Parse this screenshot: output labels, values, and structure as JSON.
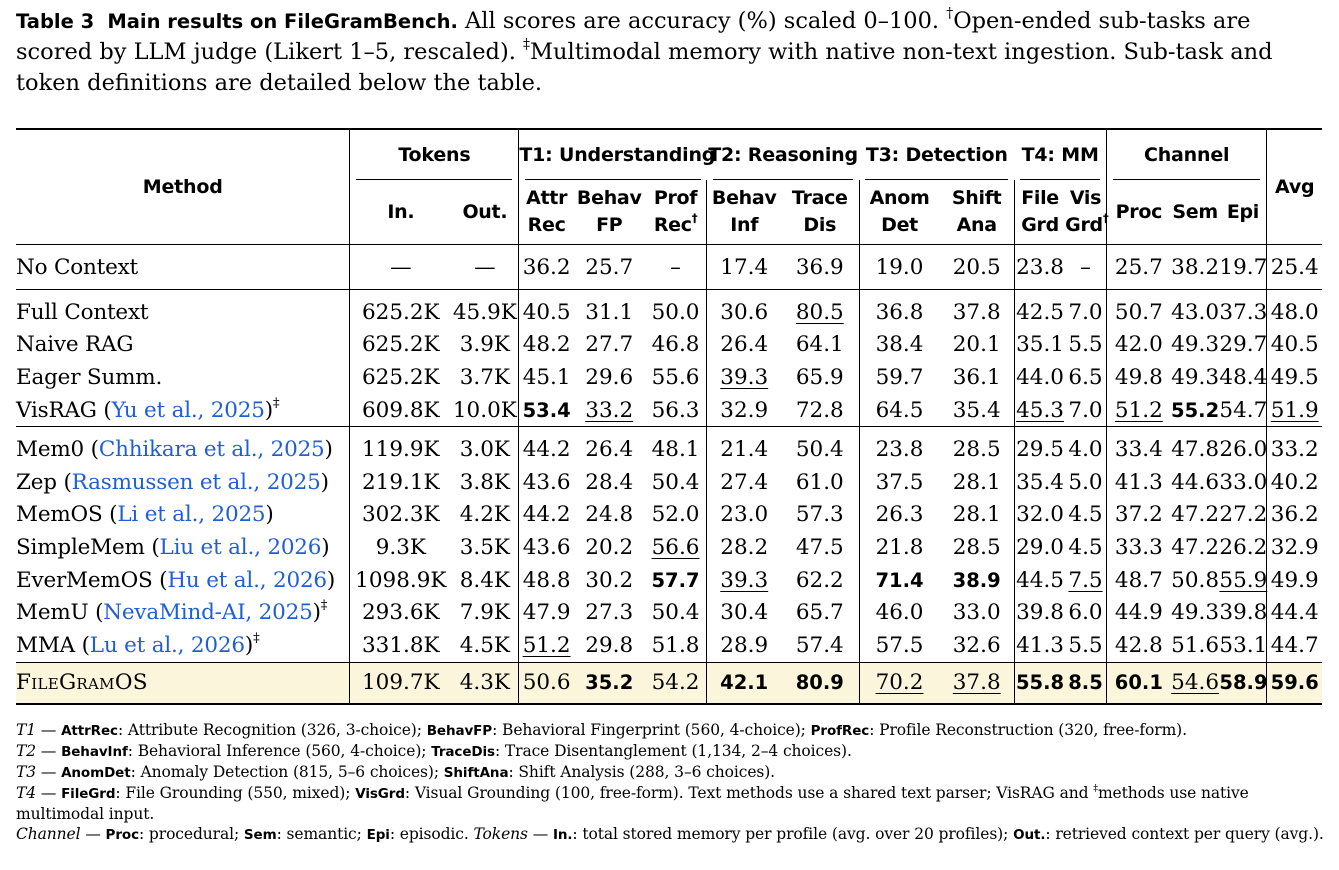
{
  "caption": {
    "label": "Table 3",
    "title": "Main results on FileGramBench.",
    "body_1": "All scores are accuracy (%) scaled 0–100.",
    "dagger_1": "†",
    "body_2": "Open-ended sub-tasks are scored by LLM judge (Likert 1–5, rescaled).",
    "ddagger_1": "‡",
    "body_3": "Multimodal memory with native non-text ingestion. Sub-task and token definitions are detailed below the table."
  },
  "header": {
    "method": "Method",
    "groups": {
      "tokens": "Tokens",
      "t1": "T1: Understanding",
      "t2": "T2: Reasoning",
      "t3": "T3: Detection",
      "t4": "T4: MM",
      "channel": "Channel",
      "avg": "Avg"
    },
    "cols": {
      "in": "In.",
      "out": "Out.",
      "attr_a": "Attr",
      "attr_b": "Rec",
      "behfp_a": "Behav",
      "behfp_b": "FP",
      "prof_a": "Prof",
      "prof_b": "Rec",
      "behinf_a": "Behav",
      "behinf_b": "Inf",
      "trace_a": "Trace",
      "trace_b": "Dis",
      "anom_a": "Anom",
      "anom_b": "Det",
      "shift_a": "Shift",
      "shift_b": "Ana",
      "file_a": "File",
      "file_b": "Grd",
      "vis_a": "Vis",
      "vis_b": "Grd",
      "proc": "Proc",
      "sem": "Sem",
      "epi": "Epi",
      "dagger": "†"
    }
  },
  "rows": {
    "no_context": {
      "name": "No Context",
      "v": [
        "—",
        "—",
        "36.2",
        "25.7",
        "–",
        "17.4",
        "36.9",
        "19.0",
        "20.5",
        "23.8",
        "–",
        "25.7",
        "38.2",
        "19.7",
        "25.4"
      ]
    },
    "full_context": {
      "name": "Full Context",
      "v": [
        "625.2K",
        "45.9K",
        "40.5",
        "31.1",
        "50.0",
        "30.6",
        "80.5",
        "36.8",
        "37.8",
        "42.5",
        "7.0",
        "50.7",
        "43.0",
        "37.3",
        "48.0"
      ]
    },
    "naive_rag": {
      "name": "Naive RAG",
      "v": [
        "625.2K",
        "3.9K",
        "48.2",
        "27.7",
        "46.8",
        "26.4",
        "64.1",
        "38.4",
        "20.1",
        "35.1",
        "5.5",
        "42.0",
        "49.3",
        "29.7",
        "40.5"
      ]
    },
    "eager_summ": {
      "name": "Eager Summ.",
      "v": [
        "625.2K",
        "3.7K",
        "45.1",
        "29.6",
        "55.6",
        "39.3",
        "65.9",
        "59.7",
        "36.1",
        "44.0",
        "6.5",
        "49.8",
        "49.3",
        "48.4",
        "49.5"
      ]
    },
    "visrag": {
      "name": "VisRAG (",
      "cite": "Yu et al., 2025",
      "tail": ")",
      "mark": "‡",
      "v": [
        "609.8K",
        "10.0K",
        "53.4",
        "33.2",
        "56.3",
        "32.9",
        "72.8",
        "64.5",
        "35.4",
        "45.3",
        "7.0",
        "51.2",
        "55.2",
        "54.7",
        "51.9"
      ]
    },
    "mem0": {
      "name": "Mem0 (",
      "cite": "Chhikara et al., 2025",
      "tail": ")",
      "v": [
        "119.9K",
        "3.0K",
        "44.2",
        "26.4",
        "48.1",
        "21.4",
        "50.4",
        "23.8",
        "28.5",
        "29.5",
        "4.0",
        "33.4",
        "47.8",
        "26.0",
        "33.2"
      ]
    },
    "zep": {
      "name": "Zep (",
      "cite": "Rasmussen et al., 2025",
      "tail": ")",
      "v": [
        "219.1K",
        "3.8K",
        "43.6",
        "28.4",
        "50.4",
        "27.4",
        "61.0",
        "37.5",
        "28.1",
        "35.4",
        "5.0",
        "41.3",
        "44.6",
        "33.0",
        "40.2"
      ]
    },
    "memos": {
      "name": "MemOS (",
      "cite": "Li et al., 2025",
      "tail": ")",
      "v": [
        "302.3K",
        "4.2K",
        "44.2",
        "24.8",
        "52.0",
        "23.0",
        "57.3",
        "26.3",
        "28.1",
        "32.0",
        "4.5",
        "37.2",
        "47.2",
        "27.2",
        "36.2"
      ]
    },
    "simplemem": {
      "name": "SimpleMem (",
      "cite": "Liu et al., 2026",
      "tail": ")",
      "v": [
        "9.3K",
        "3.5K",
        "43.6",
        "20.2",
        "56.6",
        "28.2",
        "47.5",
        "21.8",
        "28.5",
        "29.0",
        "4.5",
        "33.3",
        "47.2",
        "26.2",
        "32.9"
      ]
    },
    "evermemos": {
      "name": "EverMemOS (",
      "cite": "Hu et al., 2026",
      "tail": ")",
      "v": [
        "1098.9K",
        "8.4K",
        "48.8",
        "30.2",
        "57.7",
        "39.3",
        "62.2",
        "71.4",
        "38.9",
        "44.5",
        "7.5",
        "48.7",
        "50.8",
        "55.9",
        "49.9"
      ]
    },
    "memu": {
      "name": "MemU (",
      "cite": "NevaMind-AI, 2025",
      "tail": ")",
      "mark": "‡",
      "v": [
        "293.6K",
        "7.9K",
        "47.9",
        "27.3",
        "50.4",
        "30.4",
        "65.7",
        "46.0",
        "33.0",
        "39.8",
        "6.0",
        "44.9",
        "49.3",
        "39.8",
        "44.4"
      ]
    },
    "mma": {
      "name": "MMA (",
      "cite": "Lu et al., 2026",
      "tail": ")",
      "mark": "‡",
      "v": [
        "331.8K",
        "4.5K",
        "51.2",
        "29.8",
        "51.8",
        "28.9",
        "57.4",
        "57.5",
        "32.6",
        "41.3",
        "5.5",
        "42.8",
        "51.6",
        "53.1",
        "44.7"
      ]
    },
    "filegramos": {
      "name": "FileGramOS",
      "v": [
        "109.7K",
        "4.3K",
        "50.6",
        "35.2",
        "54.2",
        "42.1",
        "80.9",
        "70.2",
        "37.8",
        "55.8",
        "8.5",
        "60.1",
        "54.6",
        "58.9",
        "59.6"
      ]
    }
  },
  "notes": {
    "t1_key": "T1",
    "t1_text": [
      {
        "b": "AttrRec",
        "t": ": Attribute Recognition (326, 3-choice); "
      },
      {
        "b": "BehavFP",
        "t": ": Behavioral Fingerprint (560, 4-choice); "
      },
      {
        "b": "ProfRec",
        "t": ": Profile Reconstruction (320, free-form)."
      }
    ],
    "t2_key": "T2",
    "t2_text": [
      {
        "b": "BehavInf",
        "t": ": Behavioral Inference (560, 4-choice); "
      },
      {
        "b": "TraceDis",
        "t": ": Trace Disentanglement (1,134, 2–4 choices)."
      }
    ],
    "t3_key": "T3",
    "t3_text": [
      {
        "b": "AnomDet",
        "t": ": Anomaly Detection (815, 5–6 choices); "
      },
      {
        "b": "ShiftAna",
        "t": ": Shift Analysis (288, 3–6 choices)."
      }
    ],
    "t4_key": "T4",
    "t4_text": [
      {
        "b": "FileGrd",
        "t": ": File Grounding (550, mixed); "
      },
      {
        "b": "VisGrd",
        "t": ": Visual Grounding (100, free-form). Text methods use a shared text parser; VisRAG and "
      }
    ],
    "t4_mark": "‡",
    "t4_tail": "methods use native multimodal input.",
    "ch_key": "Channel",
    "dash": "—",
    "ch_text": [
      {
        "b": "Proc",
        "t": ": procedural; "
      },
      {
        "b": "Sem",
        "t": ": semantic; "
      },
      {
        "b": "Epi",
        "t": ": episodic. "
      }
    ],
    "tok_key": "Tokens",
    "tok_text": [
      {
        "b": "In.",
        "t": ": total stored memory per profile (avg. over 20 profiles); "
      },
      {
        "b": "Out.",
        "t": ": retrieved context per query (avg.)."
      }
    ]
  }
}
